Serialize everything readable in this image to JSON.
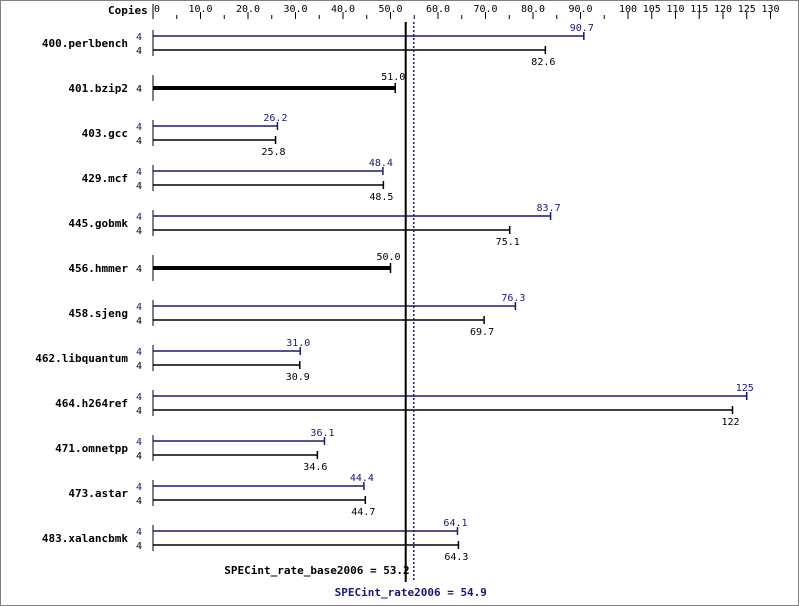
{
  "chart_data": {
    "type": "bar",
    "axis_title": "Copies",
    "x_ticks": [
      "0",
      "10.0",
      "20.0",
      "30.0",
      "40.0",
      "50.0",
      "60.0",
      "70.0",
      "80.0",
      "90.0",
      "100",
      "105",
      "110",
      "115",
      "120",
      "125",
      "130"
    ],
    "x_range": [
      0,
      130
    ],
    "categories": [
      "400.perlbench",
      "401.bzip2",
      "403.gcc",
      "429.mcf",
      "445.gobmk",
      "456.hmmer",
      "458.sjeng",
      "462.libquantum",
      "464.h264ref",
      "471.omnetpp",
      "473.astar",
      "483.xalancbmk"
    ],
    "series": [
      {
        "key": "peak",
        "color": "#191970",
        "copies": [
          "4",
          "",
          "4",
          "4",
          "4",
          "",
          "4",
          "4",
          "4",
          "4",
          "4",
          "4"
        ],
        "values": [
          90.7,
          null,
          26.2,
          48.4,
          83.7,
          null,
          76.3,
          31.0,
          125,
          36.1,
          44.4,
          64.1
        ],
        "labels": [
          "90.7",
          "",
          "26.2",
          "48.4",
          "83.7",
          "",
          "76.3",
          "31.0",
          "125",
          "36.1",
          "44.4",
          "64.1"
        ]
      },
      {
        "key": "base",
        "color": "#000000",
        "copies": [
          "4",
          "4",
          "4",
          "4",
          "4",
          "4",
          "4",
          "4",
          "4",
          "4",
          "4",
          "4"
        ],
        "values": [
          82.6,
          51.0,
          25.8,
          48.5,
          75.1,
          50.0,
          69.7,
          30.9,
          122,
          34.6,
          44.7,
          64.3
        ],
        "labels": [
          "82.6",
          "51.0",
          "25.8",
          "48.5",
          "75.1",
          "50.0",
          "69.7",
          "30.9",
          "122",
          "34.6",
          "44.7",
          "64.3"
        ]
      }
    ],
    "reference_lines": [
      {
        "key": "base",
        "value": 53.2,
        "label": "SPECint_rate_base2006 = 53.2",
        "color": "#000000",
        "style": "solid"
      },
      {
        "key": "peak",
        "value": 54.9,
        "label": "SPECint_rate2006 = 54.9",
        "color": "#191970",
        "style": "dotted"
      }
    ]
  }
}
